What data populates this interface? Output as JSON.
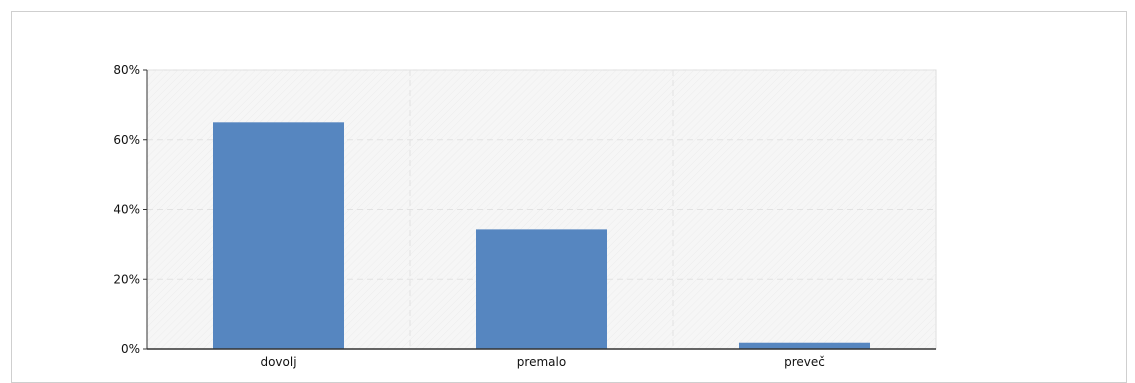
{
  "chart_data": {
    "type": "bar",
    "title": "",
    "categories": [
      "dovolj",
      "premalo",
      "preveč"
    ],
    "values": [
      65,
      34.3,
      1.8
    ],
    "value_unit": "%",
    "xlabel": "",
    "ylabel": "",
    "ylim": [
      0,
      80
    ],
    "yticks": [
      "0%",
      "20%",
      "40%",
      "60%",
      "80%"
    ],
    "grid": true,
    "legend": "none",
    "bar_color": "#5686c0"
  },
  "colors": {
    "plot_background": "#f6f6f6",
    "grid": "#e2e2e2",
    "axis": "#333333"
  }
}
